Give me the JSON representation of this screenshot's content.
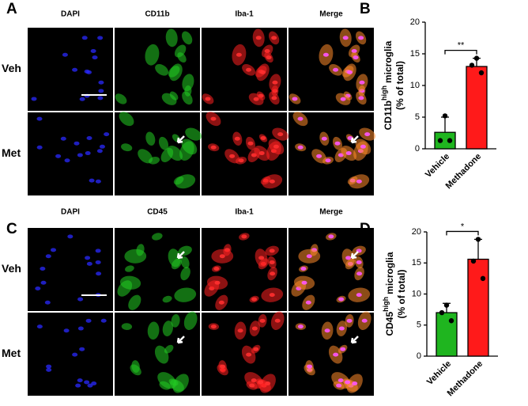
{
  "figure_panels": [
    {
      "label": "A",
      "columns": [
        "DAPI",
        "CD11b",
        "Iba-1",
        "Merge"
      ],
      "rows": [
        "Veh",
        "Met"
      ]
    },
    {
      "label": "C",
      "columns": [
        "DAPI",
        "CD45",
        "Iba-1",
        "Merge"
      ],
      "rows": [
        "Veh",
        "Met"
      ]
    }
  ],
  "chart_data": [
    {
      "type": "bar",
      "panel_label": "B",
      "ylabel_main": "CD11b",
      "ylabel_sup": "high",
      "ylabel_rest": "microglia",
      "ylabel_line2": "(% of total)",
      "categories": [
        "Vehicle",
        "Methadone"
      ],
      "values": [
        2.6,
        13.0
      ],
      "errors": [
        2.4,
        1.3
      ],
      "points": [
        [
          5.2,
          1.3,
          1.3
        ],
        [
          14.3,
          13.2,
          12.0
        ]
      ],
      "colors": [
        "#1fb51f",
        "#ff1a1a"
      ],
      "significance": "**",
      "ylim": [
        0,
        20
      ],
      "yticks": [
        0,
        5,
        10,
        15,
        20
      ]
    },
    {
      "type": "bar",
      "panel_label": "D",
      "ylabel_main": "CD45",
      "ylabel_sup": "high",
      "ylabel_rest": "microglia",
      "ylabel_line2": "(% of total)",
      "categories": [
        "Vehicle",
        "Methadone"
      ],
      "values": [
        7.0,
        15.6
      ],
      "errors": [
        1.5,
        3.2
      ],
      "points": [
        [
          8.2,
          7.0,
          5.7
        ],
        [
          18.8,
          15.3,
          12.5
        ]
      ],
      "colors": [
        "#1fb51f",
        "#ff1a1a"
      ],
      "significance": "*",
      "ylim": [
        0,
        20
      ],
      "yticks": [
        0,
        5,
        10,
        15,
        20
      ]
    }
  ]
}
